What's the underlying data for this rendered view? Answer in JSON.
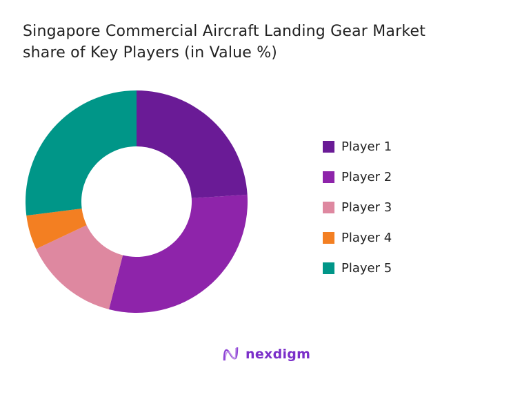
{
  "chart_data": {
    "type": "pie",
    "donut": true,
    "title": "Singapore Commercial Aircraft Landing Gear Market share of Key Players (in Value %)",
    "title_lines": [
      "Singapore Commercial Aircraft Landing Gear Market",
      "share of Key Players (in Value %)"
    ],
    "categories": [
      "Player 1",
      "Player 2",
      "Player 3",
      "Player 4",
      "Player 5"
    ],
    "values": [
      24,
      30,
      14,
      5,
      27
    ],
    "colors": [
      "#6a1b96",
      "#8e24aa",
      "#de88a0",
      "#f37f22",
      "#009688"
    ],
    "legend_position": "right"
  },
  "logo": {
    "text": "nexdigm",
    "color": "#7b2fc9"
  }
}
